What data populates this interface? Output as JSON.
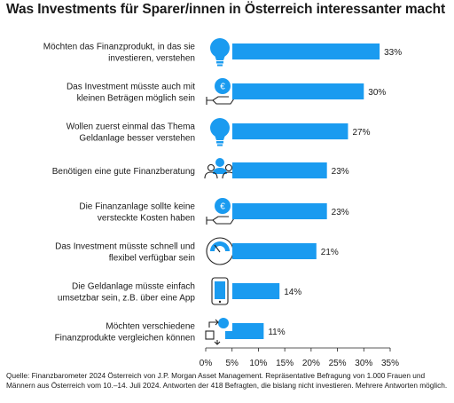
{
  "title": "Was Investments für Sparer/innen in Österreich interessanter macht",
  "source": "Quelle: Finanzbarometer 2024 Österreich von J.P. Morgan Asset Management. Repräsentative Befragung von 1.000 Frauen und Männern aus Österreich vom 10.–14. Juli 2024. Antworten der 418 Befragten, die bislang nicht investieren.  Mehrere Antworten möglich.",
  "chart_data": {
    "type": "bar",
    "orientation": "horizontal",
    "bar_color": "#1a9bf0",
    "categories": [
      [
        "Möchten das Finanzprodukt, in das sie",
        "investieren, verstehen"
      ],
      [
        "Das Investment müsste auch mit",
        "kleinen Beträgen möglich sein"
      ],
      [
        "Wollen zuerst einmal das Thema",
        "Geldanlage besser verstehen"
      ],
      [
        "Benötigen eine gute Finanzberatung"
      ],
      [
        "Die Finanzanlage sollte keine",
        "versteckte Kosten haben"
      ],
      [
        "Das Investment müsste schnell und",
        "flexibel verfügbar sein"
      ],
      [
        "Die Geldanlage müsste einfach",
        "umsetzbar sein, z.B. über eine App"
      ],
      [
        "Möchten verschiedene",
        "Finanzprodukte vergleichen können"
      ]
    ],
    "values": [
      33,
      30,
      27,
      23,
      23,
      21,
      14,
      11
    ],
    "value_labels": [
      "33%",
      "30%",
      "27%",
      "23%",
      "23%",
      "21%",
      "14%",
      "11%"
    ],
    "icons": [
      "lightbulb-icon",
      "hand-coin-icon",
      "lightbulb-icon",
      "people-icon",
      "hand-coin-icon",
      "speedometer-icon",
      "smartphone-icon",
      "compare-icon"
    ],
    "xlim": [
      0,
      35
    ],
    "xticks": [
      "0%",
      "5%",
      "10%",
      "15%",
      "20%",
      "25%",
      "30%",
      "35%"
    ],
    "grid": false
  }
}
